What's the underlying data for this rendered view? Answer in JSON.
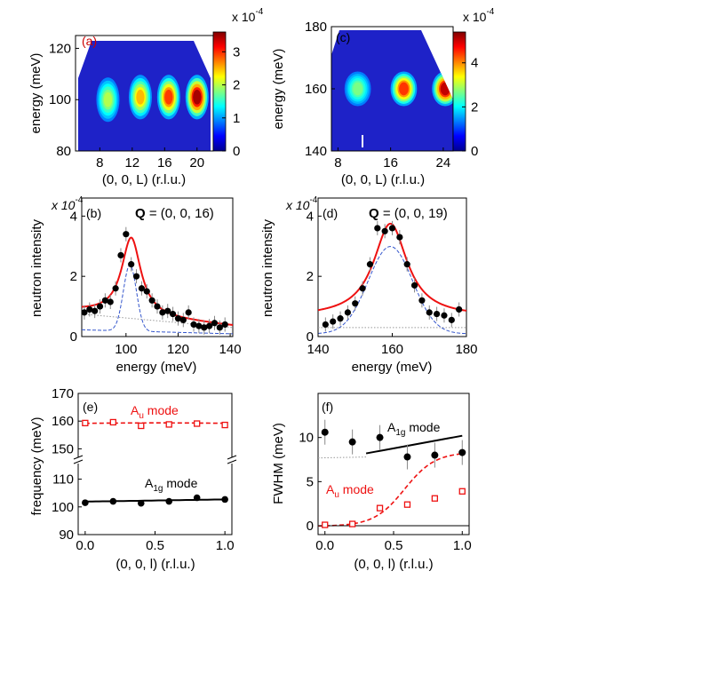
{
  "panels": {
    "a": {
      "tag": "(a)",
      "ylabel": "energy (meV)",
      "xlabel": "(0, 0, L) (r.l.u.)",
      "xticks": [
        "8",
        "12",
        "16",
        "20"
      ],
      "yticks": [
        "80",
        "100",
        "120"
      ],
      "cbar_ticks": [
        "0",
        "1",
        "2",
        "3"
      ],
      "cbar_scale": "x 10",
      "cbar_exp": "-4"
    },
    "b": {
      "tag": "(b)",
      "qlabel_bold": "Q",
      "qlabel_rest": " = (0, 0, 16)",
      "scale_prefix": "x 10",
      "scale_exp": "-4",
      "ylabel": "neutron intensity",
      "xlabel": "energy (meV)",
      "xticks": [
        "100",
        "120",
        "140"
      ],
      "yticks": [
        "0",
        "2",
        "4"
      ]
    },
    "c": {
      "tag": "(c)",
      "ylabel": "energy (meV)",
      "xlabel": "(0, 0, L) (r.l.u.)",
      "xticks": [
        "8",
        "16",
        "24"
      ],
      "yticks": [
        "140",
        "160",
        "180"
      ],
      "cbar_ticks": [
        "0",
        "2",
        "4"
      ],
      "cbar_scale": "x 10",
      "cbar_exp": "-4"
    },
    "d": {
      "tag": "(d)",
      "qlabel_bold": "Q",
      "qlabel_rest": " = (0, 0, 19)",
      "scale_prefix": "x 10",
      "scale_exp": "-4",
      "ylabel": "neutron intensity",
      "xlabel": "energy (meV)",
      "xticks": [
        "140",
        "160",
        "180"
      ],
      "yticks": [
        "0",
        "2",
        "4"
      ]
    },
    "e": {
      "tag": "(e)",
      "ylabel": "frequency (meV)",
      "xlabel": "(0, 0, l) (r.l.u.)",
      "xticks": [
        "0.0",
        "0.5",
        "1.0"
      ],
      "yticks_upper": [
        "150",
        "160",
        "170"
      ],
      "yticks_lower": [
        "90",
        "100",
        "110"
      ],
      "au_label": "A",
      "au_sub": "u",
      "au_suffix": " mode",
      "a1g_label": "A",
      "a1g_sub": "1g",
      "a1g_suffix": " mode"
    },
    "f": {
      "tag": "(f)",
      "ylabel": "FWHM (meV)",
      "xlabel": "(0, 0, l) (r.l.u.)",
      "xticks": [
        "0.0",
        "0.5",
        "1.0"
      ],
      "yticks": [
        "0",
        "5",
        "10"
      ],
      "au_label": "A",
      "au_sub": "u",
      "au_suffix": " mode",
      "a1g_label": "A",
      "a1g_sub": "1g",
      "a1g_suffix": " mode"
    }
  },
  "colors": {
    "fit_total": "#ee1111",
    "fit_component": "#3355cc",
    "au": "#ee1111",
    "a1g": "#000000",
    "background": "#999999",
    "tag_a": "#cc0000"
  },
  "chart_data": [
    {
      "panel": "a",
      "type": "heatmap",
      "xlabel": "(0, 0, L) (r.l.u.)",
      "ylabel": "energy (meV)",
      "xlim": [
        5,
        22
      ],
      "ylim": [
        80,
        125
      ],
      "colorbar_range": [
        0,
        3.6
      ],
      "colorbar_scale": "x 10^-4",
      "peaks": [
        {
          "L": 9,
          "energy": 100,
          "intensity": 1.6
        },
        {
          "L": 13,
          "energy": 101,
          "intensity": 2.3
        },
        {
          "L": 16.5,
          "energy": 101,
          "intensity": 2.9
        },
        {
          "L": 20,
          "energy": 101,
          "intensity": 3.6
        }
      ]
    },
    {
      "panel": "b",
      "type": "scatter",
      "title": "Q = (0, 0, 16)",
      "xlabel": "energy (meV)",
      "ylabel": "neutron intensity",
      "xlim": [
        83,
        141
      ],
      "ylim": [
        0,
        4.6
      ],
      "y_scale": "x 10^-4",
      "points": {
        "x": [
          84,
          86,
          88,
          90,
          92,
          94,
          96,
          98,
          100,
          102,
          104,
          106,
          108,
          110,
          112,
          114,
          116,
          118,
          120,
          122,
          124,
          126,
          128,
          130,
          132,
          134,
          136,
          138
        ],
        "y": [
          0.8,
          0.9,
          0.85,
          1.0,
          1.2,
          1.15,
          1.6,
          2.7,
          3.4,
          2.4,
          2.0,
          1.6,
          1.5,
          1.2,
          1.0,
          0.8,
          0.85,
          0.75,
          0.6,
          0.55,
          0.8,
          0.4,
          0.35,
          0.3,
          0.35,
          0.45,
          0.3,
          0.4
        ]
      },
      "fits": {
        "total": {
          "center": 102,
          "width": 9,
          "amplitude": 2.6,
          "background": 0.35
        },
        "component": {
          "center": 101.5,
          "width": 2.5,
          "amplitude": 2.2
        },
        "background": {
          "from": 0.75,
          "to": 0.3
        }
      }
    },
    {
      "panel": "c",
      "type": "heatmap",
      "xlabel": "(0, 0, L) (r.l.u.)",
      "ylabel": "energy (meV)",
      "xlim": [
        7,
        25.5
      ],
      "ylim": [
        140,
        180
      ],
      "colorbar_range": [
        0,
        5.4
      ],
      "colorbar_scale": "x 10^-4",
      "peaks": [
        {
          "L": 11,
          "energy": 160,
          "intensity": 2.0
        },
        {
          "L": 18,
          "energy": 160,
          "intensity": 4.4
        },
        {
          "L": 24.3,
          "energy": 160,
          "intensity": 5.2
        }
      ]
    },
    {
      "panel": "d",
      "type": "scatter",
      "title": "Q = (0, 0, 19)",
      "xlabel": "energy (meV)",
      "ylabel": "neutron intensity",
      "xlim": [
        140,
        180
      ],
      "ylim": [
        0,
        4.6
      ],
      "y_scale": "x 10^-4",
      "points": {
        "x": [
          142,
          144,
          146,
          148,
          150,
          152,
          154,
          156,
          158,
          160,
          162,
          164,
          166,
          168,
          170,
          172,
          174,
          176,
          178
        ],
        "y": [
          0.4,
          0.5,
          0.6,
          0.8,
          1.1,
          1.6,
          2.4,
          3.6,
          3.5,
          3.6,
          3.3,
          2.4,
          1.7,
          1.2,
          0.8,
          0.75,
          0.7,
          0.55,
          0.9
        ]
      },
      "fits": {
        "total": {
          "center": 159.5,
          "width": 11,
          "amplitude": 3.1,
          "background": 0.5
        },
        "component": {
          "center": 159.5,
          "width": 6,
          "amplitude": 2.9
        },
        "background": {
          "from": 0.3,
          "to": 0.3
        }
      }
    },
    {
      "panel": "e",
      "type": "scatter",
      "xlabel": "(0, 0, l) (r.l.u.)",
      "ylabel": "frequency (meV)",
      "xlim": [
        -0.05,
        1.05
      ],
      "ylim_lower": [
        90,
        115
      ],
      "ylim_upper": [
        145,
        170
      ],
      "axis_break": true,
      "series": [
        {
          "name": "Au mode",
          "marker": "open-square",
          "x": [
            0.0,
            0.2,
            0.4,
            0.6,
            0.8,
            1.0
          ],
          "y": [
            159.3,
            159.6,
            158.3,
            158.8,
            159.1,
            158.6
          ],
          "fit": "dashed"
        },
        {
          "name": "A1g mode",
          "marker": "filled-circle",
          "x": [
            0.0,
            0.2,
            0.4,
            0.6,
            0.8,
            1.0
          ],
          "y": [
            101.5,
            102.0,
            101.3,
            102.0,
            103.3,
            102.7
          ],
          "fit": "solid"
        }
      ]
    },
    {
      "panel": "f",
      "type": "scatter",
      "xlabel": "(0, 0, l) (r.l.u.)",
      "ylabel": "FWHM (meV)",
      "xlim": [
        -0.05,
        1.05
      ],
      "ylim": [
        -0.5,
        15
      ],
      "series": [
        {
          "name": "A1g mode",
          "marker": "filled-circle",
          "x": [
            0.0,
            0.2,
            0.4,
            0.6,
            0.8,
            1.0
          ],
          "y": [
            10.6,
            9.5,
            10.0,
            7.8,
            8.0,
            8.3
          ]
        },
        {
          "name": "Au mode",
          "marker": "open-square",
          "x": [
            0.0,
            0.2,
            0.4,
            0.6,
            0.8,
            1.0
          ],
          "y": [
            0.1,
            0.2,
            2.0,
            2.4,
            3.1,
            3.9
          ]
        }
      ]
    }
  ]
}
